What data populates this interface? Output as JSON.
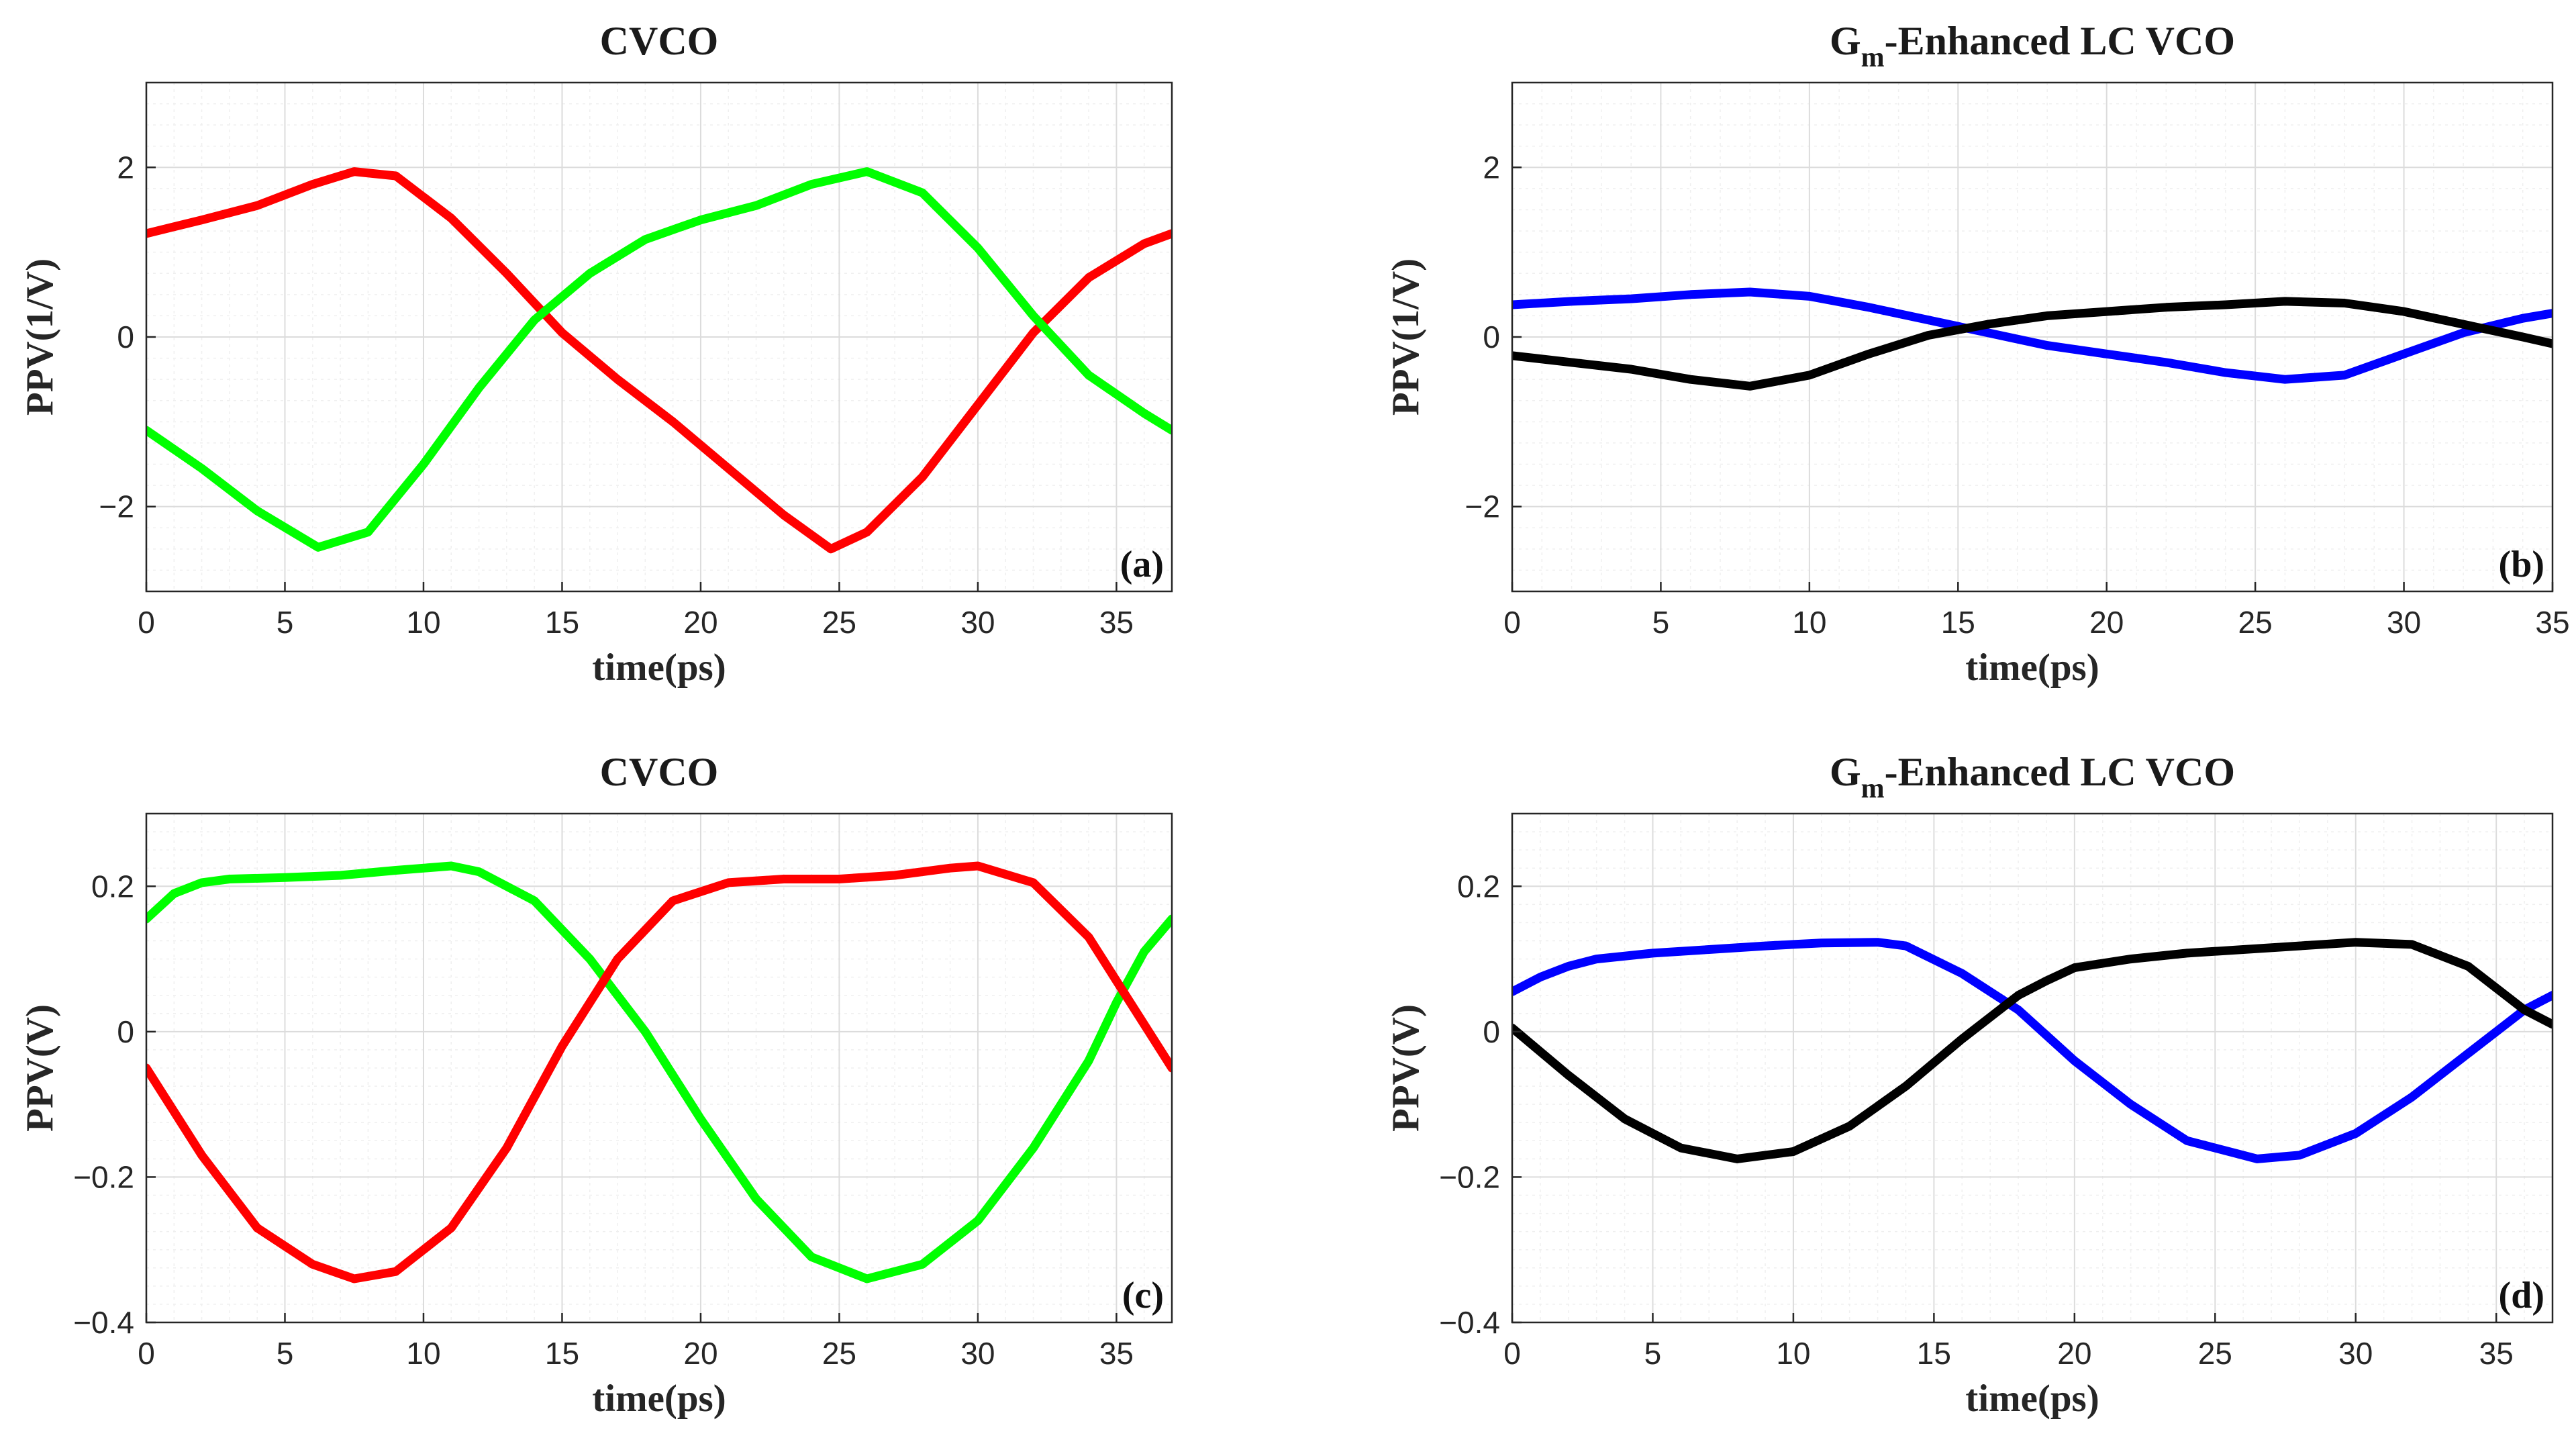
{
  "chart_data": [
    {
      "id": "a",
      "type": "line",
      "title": "CVCO",
      "title_parts": [
        "CVCO"
      ],
      "xlabel": "time(ps)",
      "ylabel": "PPV(1/V)",
      "panel_label": "(a)",
      "xlim": [
        0,
        37
      ],
      "ylim": [
        -3,
        3
      ],
      "xticks": [
        0,
        5,
        10,
        15,
        20,
        25,
        30,
        35
      ],
      "yticks": [
        -2,
        0,
        2
      ],
      "ytick_labels": [
        "−2",
        "0",
        "2"
      ],
      "grid": true,
      "series": [
        {
          "name": "red",
          "color": "#ff0000",
          "x": [
            0,
            2,
            4,
            6,
            7.5,
            9,
            11,
            13,
            15,
            17,
            19,
            21,
            23,
            24.7,
            26,
            28,
            30,
            32,
            34,
            36,
            37
          ],
          "y": [
            1.22,
            1.38,
            1.55,
            1.8,
            1.95,
            1.9,
            1.4,
            0.75,
            0.05,
            -0.5,
            -1.0,
            -1.55,
            -2.1,
            -2.5,
            -2.3,
            -1.65,
            -0.8,
            0.05,
            0.7,
            1.1,
            1.22
          ]
        },
        {
          "name": "green",
          "color": "#00ff00",
          "x": [
            0,
            2,
            4,
            6.2,
            8,
            10,
            12,
            14,
            16,
            18,
            20,
            22,
            24,
            26,
            28,
            30,
            32,
            34,
            36,
            37
          ],
          "y": [
            -1.1,
            -1.55,
            -2.05,
            -2.48,
            -2.3,
            -1.5,
            -0.6,
            0.2,
            0.75,
            1.15,
            1.38,
            1.55,
            1.8,
            1.95,
            1.7,
            1.05,
            0.25,
            -0.45,
            -0.9,
            -1.1
          ]
        }
      ]
    },
    {
      "id": "b",
      "type": "line",
      "title": "Gm-Enhanced LC VCO",
      "title_parts": [
        "G",
        "m",
        "-Enhanced LC VCO"
      ],
      "xlabel": "time(ps)",
      "ylabel": "PPV(1/V)",
      "panel_label": "(b)",
      "xlim": [
        0,
        35
      ],
      "ylim": [
        -3,
        3
      ],
      "xticks": [
        0,
        5,
        10,
        15,
        20,
        25,
        30,
        35
      ],
      "yticks": [
        -2,
        0,
        2
      ],
      "ytick_labels": [
        "−2",
        "0",
        "2"
      ],
      "grid": true,
      "series": [
        {
          "name": "blue",
          "color": "#0000ff",
          "x": [
            0,
            2,
            4,
            6,
            8,
            10,
            12,
            14,
            16,
            18,
            20,
            22,
            24,
            26,
            28,
            30,
            32,
            34,
            35
          ],
          "y": [
            0.38,
            0.42,
            0.45,
            0.5,
            0.53,
            0.48,
            0.35,
            0.2,
            0.05,
            -0.1,
            -0.2,
            -0.3,
            -0.42,
            -0.5,
            -0.45,
            -0.2,
            0.05,
            0.22,
            0.28
          ]
        },
        {
          "name": "black",
          "color": "#000000",
          "x": [
            0,
            2,
            4,
            6,
            8,
            10,
            12,
            14,
            16,
            18,
            20,
            22,
            24,
            26,
            28,
            30,
            32,
            34,
            35
          ],
          "y": [
            -0.22,
            -0.3,
            -0.38,
            -0.5,
            -0.58,
            -0.45,
            -0.2,
            0.02,
            0.15,
            0.25,
            0.3,
            0.35,
            0.38,
            0.42,
            0.4,
            0.3,
            0.15,
            0.0,
            -0.08
          ]
        }
      ]
    },
    {
      "id": "c",
      "type": "line",
      "title": "CVCO",
      "title_parts": [
        "CVCO"
      ],
      "xlabel": "time(ps)",
      "ylabel": "PPV(V)",
      "panel_label": "(c)",
      "xlim": [
        0,
        37
      ],
      "ylim": [
        -0.4,
        0.3
      ],
      "xticks": [
        0,
        5,
        10,
        15,
        20,
        25,
        30,
        35
      ],
      "yticks": [
        -0.4,
        -0.2,
        0,
        0.2
      ],
      "ytick_labels": [
        "−0.4",
        "−0.2",
        "0",
        "0.2"
      ],
      "grid": true,
      "series": [
        {
          "name": "green",
          "color": "#00ff00",
          "x": [
            0,
            1,
            2,
            3,
            5,
            7,
            9,
            11,
            12,
            14,
            16,
            18,
            20,
            22,
            24,
            26,
            28,
            30,
            32,
            34,
            35,
            36,
            37
          ],
          "y": [
            0.155,
            0.19,
            0.205,
            0.21,
            0.212,
            0.215,
            0.222,
            0.228,
            0.22,
            0.18,
            0.1,
            0.0,
            -0.12,
            -0.23,
            -0.31,
            -0.34,
            -0.32,
            -0.26,
            -0.16,
            -0.04,
            0.04,
            0.11,
            0.155
          ]
        },
        {
          "name": "red",
          "color": "#ff0000",
          "x": [
            0,
            2,
            4,
            6,
            7.5,
            9,
            11,
            13,
            15,
            17,
            19,
            21,
            23,
            25,
            27,
            29,
            30,
            32,
            34,
            35,
            36,
            37
          ],
          "y": [
            -0.05,
            -0.17,
            -0.27,
            -0.32,
            -0.34,
            -0.33,
            -0.27,
            -0.16,
            -0.02,
            0.1,
            0.18,
            0.205,
            0.21,
            0.21,
            0.215,
            0.225,
            0.228,
            0.205,
            0.13,
            0.07,
            0.01,
            -0.05
          ]
        }
      ]
    },
    {
      "id": "d",
      "type": "line",
      "title": "Gm-Enhanced LC VCO",
      "title_parts": [
        "G",
        "m",
        "-Enhanced LC VCO"
      ],
      "xlabel": "time(ps)",
      "ylabel": "PPV(V)",
      "panel_label": "(d)",
      "xlim": [
        0,
        37
      ],
      "ylim": [
        -0.4,
        0.3
      ],
      "xticks": [
        0,
        5,
        10,
        15,
        20,
        25,
        30,
        35
      ],
      "yticks": [
        -0.4,
        -0.2,
        0,
        0.2
      ],
      "ytick_labels": [
        "−0.4",
        "−0.2",
        "0",
        "0.2"
      ],
      "grid": true,
      "series": [
        {
          "name": "blue",
          "color": "#0000ff",
          "x": [
            0,
            1,
            2,
            3,
            5,
            7,
            9,
            11,
            13,
            14,
            16,
            18,
            20,
            22,
            24,
            26.5,
            28,
            30,
            32,
            34,
            35,
            36,
            37
          ],
          "y": [
            0.055,
            0.075,
            0.09,
            0.1,
            0.108,
            0.113,
            0.118,
            0.122,
            0.123,
            0.118,
            0.08,
            0.03,
            -0.04,
            -0.1,
            -0.15,
            -0.175,
            -0.17,
            -0.14,
            -0.09,
            -0.03,
            0.0,
            0.03,
            0.05
          ]
        },
        {
          "name": "black",
          "color": "#000000",
          "x": [
            0,
            2,
            4,
            6,
            8,
            10,
            12,
            14,
            16,
            18,
            19,
            20,
            22,
            24,
            26,
            28,
            30,
            32,
            34,
            35,
            36,
            37
          ],
          "y": [
            0.005,
            -0.06,
            -0.12,
            -0.16,
            -0.175,
            -0.165,
            -0.13,
            -0.075,
            -0.01,
            0.05,
            0.07,
            0.088,
            0.1,
            0.108,
            0.113,
            0.118,
            0.123,
            0.12,
            0.09,
            0.06,
            0.03,
            0.01
          ]
        }
      ]
    }
  ]
}
